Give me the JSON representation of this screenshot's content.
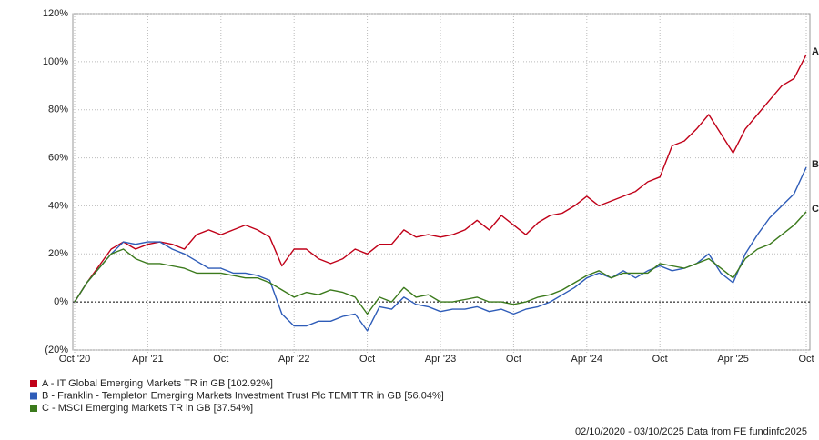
{
  "chart_data": {
    "type": "line",
    "x": [
      "2020-10",
      "2020-11",
      "2020-12",
      "2021-01",
      "2021-02",
      "2021-03",
      "2021-04",
      "2021-05",
      "2021-06",
      "2021-07",
      "2021-08",
      "2021-09",
      "2021-10",
      "2021-11",
      "2021-12",
      "2022-01",
      "2022-02",
      "2022-03",
      "2022-04",
      "2022-05",
      "2022-06",
      "2022-07",
      "2022-08",
      "2022-09",
      "2022-10",
      "2022-11",
      "2022-12",
      "2023-01",
      "2023-02",
      "2023-03",
      "2023-04",
      "2023-05",
      "2023-06",
      "2023-07",
      "2023-08",
      "2023-09",
      "2023-10",
      "2023-11",
      "2023-12",
      "2024-01",
      "2024-02",
      "2024-03",
      "2024-04",
      "2024-05",
      "2024-06",
      "2024-07",
      "2024-08",
      "2024-09",
      "2024-10",
      "2024-11",
      "2024-12",
      "2025-01",
      "2025-02",
      "2025-03",
      "2025-04",
      "2025-05",
      "2025-06",
      "2025-07",
      "2025-08",
      "2025-09",
      "2025-10"
    ],
    "series": [
      {
        "name": "A - IT Global Emerging Markets TR in GB [102.92%]",
        "end_label": "A",
        "color": "#c00018",
        "values": [
          0,
          8,
          15,
          22,
          25,
          22,
          24,
          25,
          24,
          22,
          28,
          30,
          28,
          30,
          32,
          30,
          27,
          15,
          22,
          22,
          18,
          16,
          18,
          22,
          20,
          24,
          24,
          30,
          27,
          28,
          27,
          28,
          30,
          34,
          30,
          36,
          32,
          28,
          33,
          36,
          37,
          40,
          44,
          40,
          42,
          44,
          46,
          50,
          52,
          65,
          67,
          72,
          78,
          70,
          62,
          72,
          78,
          84,
          90,
          93,
          102.92
        ]
      },
      {
        "name": "B - Franklin - Templeton Emerging Markets Investment Trust Plc TEMIT TR in GB [56.04%]",
        "end_label": "B",
        "color": "#2e5cb8",
        "values": [
          0,
          8,
          14,
          20,
          25,
          24,
          25,
          25,
          22,
          20,
          17,
          14,
          14,
          12,
          12,
          11,
          9,
          -5,
          -10,
          -10,
          -8,
          -8,
          -6,
          -5,
          -12,
          -2,
          -3,
          2,
          -1,
          -2,
          -4,
          -3,
          -3,
          -2,
          -4,
          -3,
          -5,
          -3,
          -2,
          0,
          3,
          6,
          10,
          12,
          10,
          13,
          10,
          13,
          15,
          13,
          14,
          16,
          20,
          12,
          8,
          20,
          28,
          35,
          40,
          45,
          56.04
        ]
      },
      {
        "name": "C - MSCI Emerging Markets TR in GB [37.54%]",
        "end_label": "C",
        "color": "#3b7a1c",
        "values": [
          0,
          8,
          14,
          20,
          22,
          18,
          16,
          16,
          15,
          14,
          12,
          12,
          12,
          11,
          10,
          10,
          8,
          5,
          2,
          4,
          3,
          5,
          4,
          2,
          -5,
          2,
          0,
          6,
          2,
          3,
          0,
          0,
          1,
          2,
          0,
          0,
          -1,
          0,
          2,
          3,
          5,
          8,
          11,
          13,
          10,
          12,
          12,
          12,
          16,
          15,
          14,
          16,
          18,
          14,
          10,
          18,
          22,
          24,
          28,
          32,
          37.54
        ]
      }
    ],
    "xlim": [
      "2020-10",
      "2025-10"
    ],
    "xticks": [
      {
        "value": "2020-10",
        "label": "Oct '20"
      },
      {
        "value": "2021-04",
        "label": "Apr '21"
      },
      {
        "value": "2021-10",
        "label": "Oct"
      },
      {
        "value": "2022-04",
        "label": "Apr '22"
      },
      {
        "value": "2022-10",
        "label": "Oct"
      },
      {
        "value": "2023-04",
        "label": "Apr '23"
      },
      {
        "value": "2023-10",
        "label": "Oct"
      },
      {
        "value": "2024-04",
        "label": "Apr '24"
      },
      {
        "value": "2024-10",
        "label": "Oct"
      },
      {
        "value": "2025-04",
        "label": "Apr '25"
      },
      {
        "value": "2025-10",
        "label": "Oct"
      }
    ],
    "ylim": [
      -20,
      120
    ],
    "yticks": [
      {
        "value": -20,
        "label": "(20%"
      },
      {
        "value": 0,
        "label": "0%"
      },
      {
        "value": 20,
        "label": "20%"
      },
      {
        "value": 40,
        "label": "40%"
      },
      {
        "value": 60,
        "label": "60%"
      },
      {
        "value": 80,
        "label": "80%"
      },
      {
        "value": 100,
        "label": "100%"
      },
      {
        "value": 120,
        "label": "120%"
      }
    ],
    "grid": true,
    "footer": "02/10/2020 - 03/10/2025 Data from FE fundinfo2025"
  }
}
